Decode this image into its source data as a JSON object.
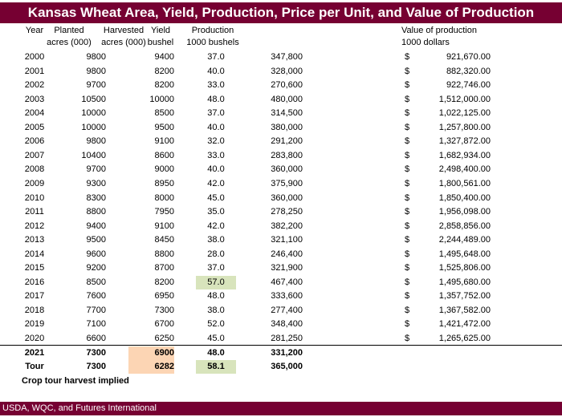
{
  "title": "Kansas Wheat Area, Yield, Production, Price per Unit, and Value of Production",
  "headers": {
    "year": "Year",
    "planted_1": "Planted",
    "planted_2": "acres (000)",
    "harvested_1": "Harvested",
    "harvested_2": "acres (000)",
    "yield_1": "Yield",
    "yield_2": "bushel",
    "production_1": "Production",
    "production_2": "1000 bushels",
    "value_1": "Value of production",
    "value_2": "1000 dollars"
  },
  "rows": [
    [
      "2000",
      "9800",
      "9400",
      "37.0",
      "347,800",
      "$",
      "921,670.00"
    ],
    [
      "2001",
      "9800",
      "8200",
      "40.0",
      "328,000",
      "$",
      "882,320.00"
    ],
    [
      "2002",
      "9700",
      "8200",
      "33.0",
      "270,600",
      "$",
      "922,746.00"
    ],
    [
      "2003",
      "10500",
      "10000",
      "48.0",
      "480,000",
      "$",
      "1,512,000.00"
    ],
    [
      "2004",
      "10000",
      "8500",
      "37.0",
      "314,500",
      "$",
      "1,022,125.00"
    ],
    [
      "2005",
      "10000",
      "9500",
      "40.0",
      "380,000",
      "$",
      "1,257,800.00"
    ],
    [
      "2006",
      "9800",
      "9100",
      "32.0",
      "291,200",
      "$",
      "1,327,872.00"
    ],
    [
      "2007",
      "10400",
      "8600",
      "33.0",
      "283,800",
      "$",
      "1,682,934.00"
    ],
    [
      "2008",
      "9700",
      "9000",
      "40.0",
      "360,000",
      "$",
      "2,498,400.00"
    ],
    [
      "2009",
      "9300",
      "8950",
      "42.0",
      "375,900",
      "$",
      "1,800,561.00"
    ],
    [
      "2010",
      "8300",
      "8000",
      "45.0",
      "360,000",
      "$",
      "1,850,400.00"
    ],
    [
      "2011",
      "8800",
      "7950",
      "35.0",
      "278,250",
      "$",
      "1,956,098.00"
    ],
    [
      "2012",
      "9400",
      "9100",
      "42.0",
      "382,200",
      "$",
      "2,858,856.00"
    ],
    [
      "2013",
      "9500",
      "8450",
      "38.0",
      "321,100",
      "$",
      "2,244,489.00"
    ],
    [
      "2014",
      "9600",
      "8800",
      "28.0",
      "246,400",
      "$",
      "1,495,648.00"
    ],
    [
      "2015",
      "9200",
      "8700",
      "37.0",
      "321,900",
      "$",
      "1,525,806.00"
    ],
    [
      "2016",
      "8500",
      "8200",
      "57.0",
      "467,400",
      "$",
      "1,495,680.00"
    ],
    [
      "2017",
      "7600",
      "6950",
      "48.0",
      "333,600",
      "$",
      "1,357,752.00"
    ],
    [
      "2018",
      "7700",
      "7300",
      "38.0",
      "277,400",
      "$",
      "1,367,582.00"
    ],
    [
      "2019",
      "7100",
      "6700",
      "52.0",
      "348,400",
      "$",
      "1,421,472.00"
    ],
    [
      "2020",
      "6600",
      "6250",
      "45.0",
      "281,250",
      "$",
      "1,265,625.00"
    ]
  ],
  "summary_rows": [
    [
      "2021",
      "7300",
      "6900",
      "48.0",
      "331,200"
    ],
    [
      "Tour",
      "7300",
      "6282",
      "58.1",
      "365,000"
    ]
  ],
  "highlights": {
    "green": "#d8e4bc",
    "orange": "#fcd5b4",
    "brand": "#760032"
  },
  "note": "Crop tour harvest implied",
  "footer": "USDA, WQC, and Futures International"
}
